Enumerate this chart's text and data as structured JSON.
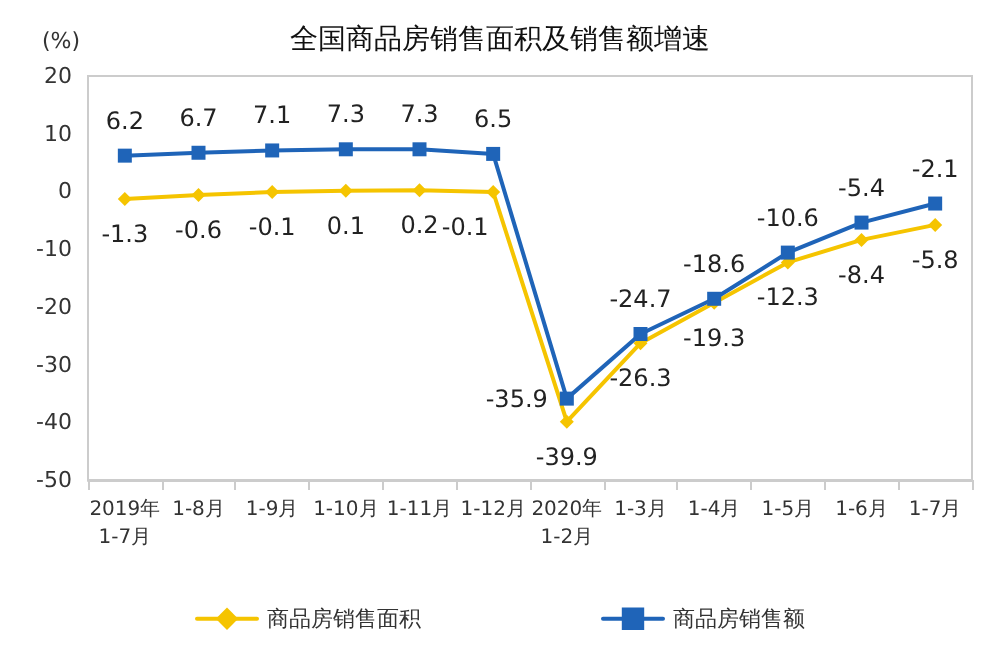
{
  "chart_data": {
    "type": "line",
    "title": "全国商品房销售面积及销售额增速",
    "ylabel": "(%)",
    "categories": [
      "2019年\n1-7月",
      "1-8月",
      "1-9月",
      "1-10月",
      "1-11月",
      "1-12月",
      "2020年\n1-2月",
      "1-3月",
      "1-4月",
      "1-5月",
      "1-6月",
      "1-7月"
    ],
    "series": [
      {
        "name": "商品房销售面积",
        "color": "#f5c400",
        "marker": "diamond",
        "values": [
          -1.3,
          -0.6,
          -0.1,
          0.1,
          0.2,
          -0.1,
          -39.9,
          -26.3,
          -19.3,
          -12.3,
          -8.4,
          -5.8
        ]
      },
      {
        "name": "商品房销售额",
        "color": "#1f64b8",
        "marker": "square",
        "values": [
          6.2,
          6.7,
          7.1,
          7.3,
          7.3,
          6.5,
          -35.9,
          -24.7,
          -18.6,
          -10.6,
          -5.4,
          -2.1
        ]
      }
    ],
    "ylim": [
      -50,
      20
    ],
    "yticks": [
      -50,
      -40,
      -30,
      -20,
      -10,
      0,
      10,
      20
    ],
    "grid": false,
    "legend": "bottom",
    "data_labels": true,
    "line_style": "solid"
  }
}
